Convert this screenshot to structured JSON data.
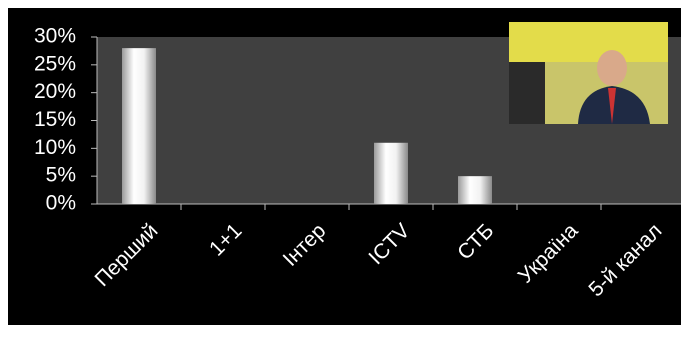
{
  "chart_data": {
    "type": "bar",
    "categories": [
      "Перший",
      "1+1",
      "Інтер",
      "ICTV",
      "СТБ",
      "Україна",
      "5-й канал"
    ],
    "values": [
      28,
      0,
      0,
      11,
      5,
      0,
      0
    ],
    "color": "#e8e8e8",
    "ylim": [
      0,
      30
    ],
    "yticks": [
      {
        "value": 0,
        "label": "0%"
      },
      {
        "value": 5,
        "label": "5%"
      },
      {
        "value": 10,
        "label": "10%"
      },
      {
        "value": 15,
        "label": "15%"
      },
      {
        "value": 20,
        "label": "20%"
      },
      {
        "value": 25,
        "label": "25%"
      },
      {
        "value": 30,
        "label": "30%"
      }
    ]
  }
}
